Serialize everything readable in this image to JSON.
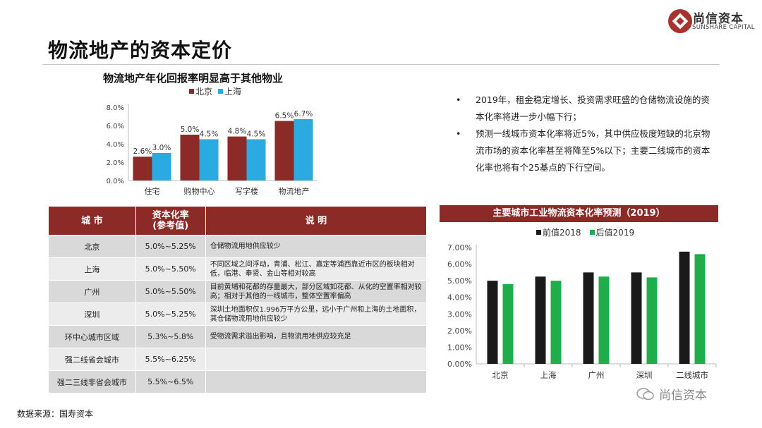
{
  "header": {
    "title": "物流地产的资本定价",
    "logo_name": "尚信资本",
    "logo_sub": "SUNSHARE CAPITAL"
  },
  "colors": {
    "accent": "#8b2a26",
    "beijing": "#8b2a26",
    "shanghai": "#2ba9e1",
    "before": "#1a1a1a",
    "after": "#1fae4b"
  },
  "bullets": [
    "2019年，租金稳定增长、投资需求旺盛的仓储物流设施的资本化率将进一步小幅下行；",
    "预测一线城市资本化率将近5%，其中供应极度短缺的北京物流市场的资本化率甚至将降至5%以下；主要二线城市的资本化率也将有个25基点的下行空间。"
  ],
  "table": {
    "headers": [
      "城 市",
      "资本化率\n(参考值)",
      "说 明"
    ],
    "rows": [
      [
        "北京",
        "5.0%~5.25%",
        "仓储物流用地供应较少"
      ],
      [
        "上海",
        "5.0%~5.50%",
        "不同区域之间浮动，青浦、松江、嘉定等浦西靠近市区的板块相对低，临港、奉贤、金山等相对较高"
      ],
      [
        "广州",
        "5.0%~5.50%",
        "目前黄埔和花都的存量最大，部分区域如花都、从化的空置率相对较高；相对于其他的一线城市，整体空置率偏高"
      ],
      [
        "深圳",
        "5.0%~5.25%",
        "深圳土地面积仅1.996万平方公里，远小于广州和上海的土地面积，其仓储物流用地供应较少"
      ],
      [
        "环中心城市区域",
        "5.3%~5.8%",
        "受物流需求溢出影响，且物流用地供应较充足"
      ],
      [
        "强二线省会城市",
        "5.5%~6.25%",
        ""
      ],
      [
        "强二三线非省会城市",
        "5.5%~6.5%",
        ""
      ]
    ]
  },
  "chart_data": [
    {
      "type": "bar",
      "title": "物流地产年化回报率明显高于其他物业",
      "categories": [
        "住宅",
        "购物中心",
        "写字楼",
        "物流地产"
      ],
      "series": [
        {
          "name": "北京",
          "values": [
            2.6,
            5.0,
            4.8,
            6.5
          ],
          "labels": [
            "2.6%",
            "5.0%",
            "4.8%",
            "6.5%"
          ]
        },
        {
          "name": "上海",
          "values": [
            3.0,
            4.5,
            4.5,
            6.7
          ],
          "labels": [
            "3.0%",
            "4.5%",
            "4.5%",
            "6.7%"
          ]
        }
      ],
      "ylim": [
        0,
        8
      ],
      "yticks": [
        "0.0%",
        "2.0%",
        "4.0%",
        "6.0%",
        "8.0%"
      ],
      "legend": "top",
      "grid": false
    },
    {
      "type": "bar",
      "title": "主要城市工业物流资本化率预测（2019）",
      "categories": [
        "北京",
        "上海",
        "广州",
        "深圳",
        "二线城市"
      ],
      "series": [
        {
          "name": "前值2018",
          "values": [
            5.0,
            5.25,
            5.5,
            5.5,
            6.75
          ]
        },
        {
          "name": "后值2019",
          "values": [
            4.8,
            5.0,
            5.25,
            5.2,
            6.6
          ]
        }
      ],
      "ylim": [
        0,
        7
      ],
      "yticks": [
        "0.00%",
        "1.00%",
        "2.00%",
        "3.00%",
        "4.00%",
        "5.00%",
        "6.00%",
        "7.00%"
      ],
      "legend": "top",
      "grid": false
    }
  ],
  "footer": {
    "source": "数据来源：国寿资本",
    "watermark": "尚信资本"
  }
}
